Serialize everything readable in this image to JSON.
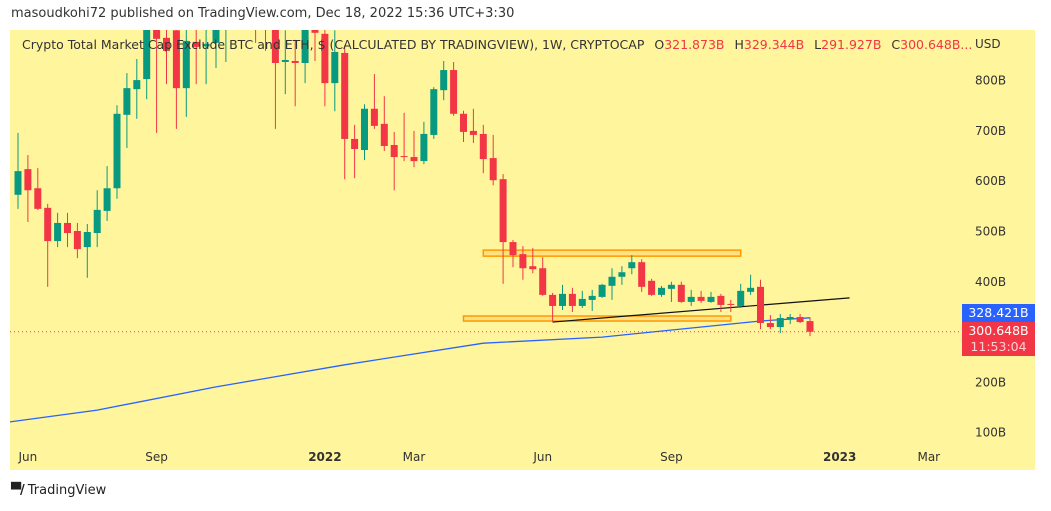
{
  "header": {
    "published": "masoudkohi72 published on TradingView.com, Dec 18, 2022 15:36 UTC+3:30"
  },
  "legend": {
    "symbol": "Crypto Total Market Cap Exclude BTC and ETH, $ (CALCULATED BY TRADINGVIEW), 1W, CRYPTOCAP",
    "o_key": "O",
    "o": "321.873B",
    "h_key": "H",
    "h": "329.344B",
    "l_key": "L",
    "l": "291.927B",
    "c_key": "C",
    "c": "300.648B...",
    "currency": "USD"
  },
  "price_labels": {
    "ma": "328.421B",
    "last": "300.648B",
    "countdown": "11:53:04"
  },
  "footer": {
    "brand": "TradingView"
  },
  "colors": {
    "up": "#089981",
    "down": "#f23645",
    "ma": "#2962ff",
    "background": "#fff59d",
    "zone": "#ff9800"
  },
  "chart_data": {
    "type": "candlestick",
    "timeframe": "1W",
    "yunit": "B USD",
    "ylim": [
      0,
      900
    ],
    "y_ticks": [
      {
        "value": 800,
        "label": "800B"
      },
      {
        "value": 700,
        "label": "700B"
      },
      {
        "value": 600,
        "label": "600B"
      },
      {
        "value": 500,
        "label": "500B"
      },
      {
        "value": 400,
        "label": "400B"
      },
      {
        "value": 200,
        "label": "200B"
      },
      {
        "value": 100,
        "label": "100B"
      }
    ],
    "x_ticks": [
      {
        "week": 1,
        "label": "Jun"
      },
      {
        "week": 14,
        "label": "Sep"
      },
      {
        "week": 31,
        "label": "2022",
        "bold": true
      },
      {
        "week": 40,
        "label": "Mar"
      },
      {
        "week": 53,
        "label": "Jun"
      },
      {
        "week": 66,
        "label": "Sep"
      },
      {
        "week": 83,
        "label": "2023",
        "bold": true
      },
      {
        "week": 92,
        "label": "Mar"
      }
    ],
    "ohlc": [
      [
        573,
        696,
        545,
        620
      ],
      [
        624,
        652,
        519,
        582
      ],
      [
        586,
        626,
        543,
        545
      ],
      [
        547,
        555,
        390,
        481
      ],
      [
        481,
        537,
        469,
        517
      ],
      [
        517,
        537,
        469,
        497
      ],
      [
        501,
        517,
        447,
        465
      ],
      [
        469,
        515,
        408,
        499
      ],
      [
        497,
        582,
        469,
        543
      ],
      [
        541,
        630,
        521,
        586
      ],
      [
        586,
        751,
        565,
        734
      ],
      [
        732,
        815,
        666,
        785
      ],
      [
        783,
        843,
        724,
        801
      ],
      [
        803,
        960,
        763,
        930
      ],
      [
        920,
        950,
        696,
        883
      ],
      [
        885,
        930,
        793,
        859
      ],
      [
        900,
        940,
        704,
        785
      ],
      [
        785,
        930,
        728,
        879
      ],
      [
        877,
        920,
        793,
        867
      ],
      [
        868,
        920,
        793,
        873
      ],
      [
        875,
        930,
        825,
        910
      ],
      [
        905,
        960,
        837,
        940
      ],
      [
        940,
        990,
        905,
        960
      ],
      [
        960,
        1000,
        920,
        950
      ],
      [
        950,
        980,
        875,
        930
      ],
      [
        930,
        960,
        859,
        910
      ],
      [
        910,
        940,
        704,
        835
      ],
      [
        837,
        900,
        773,
        841
      ],
      [
        839,
        881,
        749,
        835
      ],
      [
        835,
        930,
        795,
        910
      ],
      [
        920,
        940,
        839,
        895
      ],
      [
        893,
        910,
        749,
        795
      ],
      [
        795,
        900,
        739,
        857
      ],
      [
        855,
        870,
        604,
        684
      ],
      [
        684,
        712,
        606,
        664
      ],
      [
        662,
        753,
        642,
        744
      ],
      [
        744,
        813,
        704,
        710
      ],
      [
        714,
        769,
        660,
        670
      ],
      [
        672,
        698,
        582,
        648
      ],
      [
        650,
        736,
        640,
        648
      ],
      [
        648,
        700,
        628,
        640
      ],
      [
        640,
        718,
        634,
        694
      ],
      [
        692,
        787,
        684,
        783
      ],
      [
        781,
        839,
        761,
        821
      ],
      [
        821,
        837,
        730,
        734
      ],
      [
        734,
        740,
        678,
        698
      ],
      [
        700,
        744,
        676,
        692
      ],
      [
        694,
        712,
        616,
        644
      ],
      [
        646,
        692,
        592,
        602
      ],
      [
        604,
        614,
        396,
        479
      ],
      [
        479,
        483,
        429,
        453
      ],
      [
        455,
        471,
        404,
        427
      ],
      [
        431,
        467,
        417,
        425
      ],
      [
        427,
        449,
        372,
        374
      ],
      [
        374,
        378,
        320,
        352
      ],
      [
        352,
        394,
        344,
        376
      ],
      [
        376,
        388,
        340,
        352
      ],
      [
        352,
        382,
        348,
        366
      ],
      [
        364,
        384,
        342,
        372
      ],
      [
        370,
        396,
        368,
        394
      ],
      [
        392,
        427,
        364,
        410
      ],
      [
        410,
        431,
        394,
        419
      ],
      [
        427,
        453,
        415,
        439
      ],
      [
        439,
        445,
        380,
        390
      ],
      [
        402,
        406,
        372,
        374
      ],
      [
        374,
        392,
        370,
        388
      ],
      [
        386,
        400,
        360,
        394
      ],
      [
        394,
        400,
        358,
        360
      ],
      [
        360,
        384,
        352,
        370
      ],
      [
        370,
        382,
        358,
        362
      ],
      [
        360,
        380,
        358,
        370
      ],
      [
        372,
        376,
        340,
        354
      ],
      [
        356,
        364,
        340,
        354
      ],
      [
        352,
        396,
        348,
        382
      ],
      [
        380,
        414,
        374,
        388
      ],
      [
        390,
        404,
        306,
        318
      ],
      [
        318,
        334,
        306,
        310
      ],
      [
        310,
        336,
        298,
        328
      ],
      [
        326,
        336,
        316,
        330
      ],
      [
        330,
        336,
        318,
        320
      ],
      [
        321.873,
        329.344,
        291.927,
        300.648
      ]
    ],
    "moving_average": [
      [
        -1,
        121
      ],
      [
        8,
        145
      ],
      [
        20,
        191
      ],
      [
        33,
        235
      ],
      [
        47,
        278
      ],
      [
        59,
        290
      ],
      [
        75,
        322
      ],
      [
        80,
        328.421
      ]
    ],
    "trendline": [
      [
        54,
        320
      ],
      [
        84,
        368
      ]
    ],
    "zones": [
      {
        "from": 47,
        "to": 73,
        "top": 463,
        "bottom": 451
      },
      {
        "from": 45,
        "to": 72,
        "top": 332,
        "bottom": 322
      }
    ],
    "last_price": 300.648
  }
}
